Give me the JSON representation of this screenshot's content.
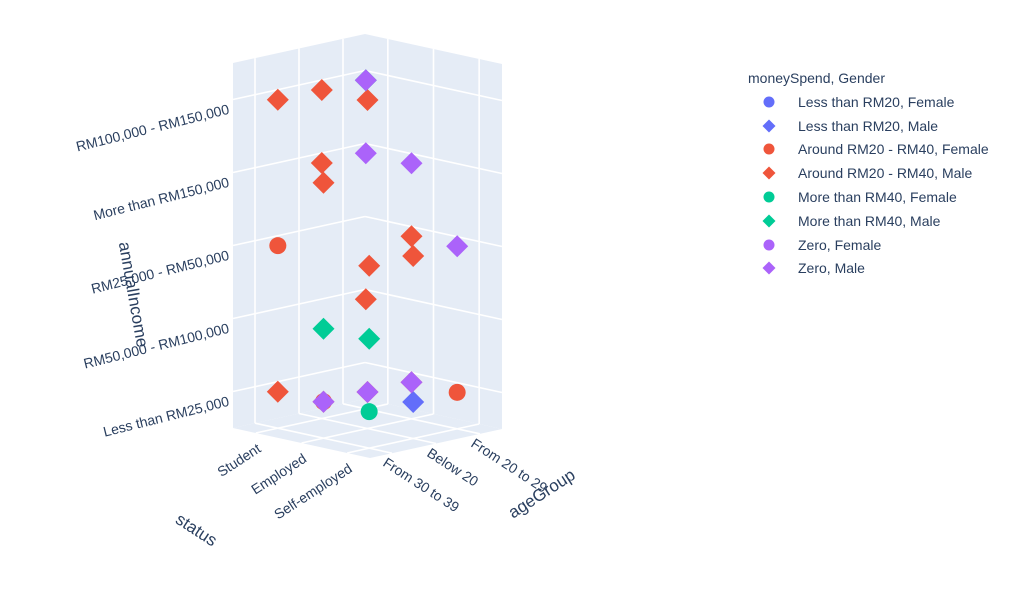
{
  "chart_data": {
    "type": "scatter3d",
    "legend_title": "moneySpend, Gender",
    "legend_placement": "top-right",
    "axes": {
      "x": {
        "title": "ageGroup",
        "categories": [
          "From 30 to 39",
          "Below 20",
          "From 20 to 29"
        ]
      },
      "y": {
        "title": "status",
        "categories": [
          "Self-employed",
          "Employed",
          "Student"
        ]
      },
      "z": {
        "title": "annualIncome",
        "categories": [
          "Less than RM25,000",
          "RM50,000 - RM100,000",
          "RM25,000 - RM50,000",
          "More than RM150,000",
          "RM100,000 - RM150,000"
        ]
      }
    },
    "tick_labels": {
      "x": [
        "From 30 to 39",
        "Below 20",
        "From 20 to 29"
      ],
      "y": [
        "Self-employed",
        "Employed",
        "Student"
      ],
      "z": [
        "Less than RM25,000",
        "RM50,000 - RM100,000",
        "RM25,000 - RM50,000",
        "More than RM150,000",
        "RM100,000 - RM150,000"
      ]
    },
    "series": [
      {
        "name": "Less than RM20, Female",
        "color": "#636efa",
        "symbol": "circle",
        "points": []
      },
      {
        "name": "Less than RM20, Male",
        "color": "#636efa",
        "symbol": "diamond",
        "points": [
          {
            "x": "From 30 to 39",
            "y": "Employed",
            "z": "Less than RM25,000"
          },
          {
            "x": "Below 20",
            "y": "Self-employed",
            "z": "Less than RM25,000"
          }
        ]
      },
      {
        "name": "Around RM20 - RM40, Female",
        "color": "#ef553b",
        "symbol": "circle",
        "points": [
          {
            "x": "From 30 to 39",
            "y": "Student",
            "z": "RM25,000 - RM50,000"
          },
          {
            "x": "From 20 to 29",
            "y": "Self-employed",
            "z": "Less than RM25,000"
          },
          {
            "x": "From 30 to 39",
            "y": "Employed",
            "z": "Less than RM25,000"
          }
        ]
      },
      {
        "name": "Around RM20 - RM40, Male",
        "color": "#ef553b",
        "symbol": "diamond",
        "points": [
          {
            "x": "From 30 to 39",
            "y": "Student",
            "z": "RM100,000 - RM150,000"
          },
          {
            "x": "From 30 to 39",
            "y": "Student",
            "z": "Less than RM25,000"
          },
          {
            "x": "From 30 to 39",
            "y": "Employed",
            "z": "More than RM150,000"
          },
          {
            "x": "From 30 to 39",
            "y": "Employed",
            "z": "Less than RM25,000"
          },
          {
            "x": "From 30 to 39",
            "y": "Self-employed",
            "z": "RM25,000 - RM50,000"
          },
          {
            "x": "Below 20",
            "y": "Student",
            "z": "RM100,000 - RM150,000"
          },
          {
            "x": "Below 20",
            "y": "Student",
            "z": "More than RM150,000"
          },
          {
            "x": "Below 20",
            "y": "Employed",
            "z": "RM100,000 - RM150,000"
          },
          {
            "x": "Below 20",
            "y": "Employed",
            "z": "Less than RM25,000"
          },
          {
            "x": "Below 20",
            "y": "Self-employed",
            "z": "RM25,000 - RM50,000"
          },
          {
            "x": "From 20 to 29",
            "y": "Student",
            "z": "RM50,000 - RM100,000"
          },
          {
            "x": "From 20 to 29",
            "y": "Employed",
            "z": "RM25,000 - RM50,000"
          },
          {
            "x": "From 20 to 29",
            "y": "Employed",
            "z": "Less than RM25,000"
          }
        ]
      },
      {
        "name": "More than RM40, Female",
        "color": "#00cc96",
        "symbol": "circle",
        "points": [
          {
            "x": "From 30 to 39",
            "y": "Self-employed",
            "z": "Less than RM25,000"
          }
        ]
      },
      {
        "name": "More than RM40, Male",
        "color": "#00cc96",
        "symbol": "diamond",
        "points": [
          {
            "x": "From 20 to 29",
            "y": "Student",
            "z": "RM100,000 - RM150,000"
          },
          {
            "x": "From 30 to 39",
            "y": "Employed",
            "z": "RM50,000 - RM100,000"
          },
          {
            "x": "From 30 to 39",
            "y": "Self-employed",
            "z": "RM50,000 - RM100,000"
          }
        ]
      },
      {
        "name": "Zero, Female",
        "color": "#ab63fa",
        "symbol": "circle",
        "points": []
      },
      {
        "name": "Zero, Male",
        "color": "#ab63fa",
        "symbol": "diamond",
        "points": [
          {
            "x": "From 20 to 29",
            "y": "Student",
            "z": "RM100,000 - RM150,000"
          },
          {
            "x": "From 20 to 29",
            "y": "Student",
            "z": "More than RM150,000"
          },
          {
            "x": "From 20 to 29",
            "y": "Employed",
            "z": "More than RM150,000"
          },
          {
            "x": "From 20 to 29",
            "y": "Self-employed",
            "z": "RM25,000 - RM50,000"
          },
          {
            "x": "From 20 to 29",
            "y": "Employed",
            "z": "Less than RM25,000"
          },
          {
            "x": "Below 20",
            "y": "Employed",
            "z": "Less than RM25,000"
          },
          {
            "x": "From 30 to 39",
            "y": "Employed",
            "z": "Less than RM25,000"
          }
        ]
      }
    ]
  }
}
